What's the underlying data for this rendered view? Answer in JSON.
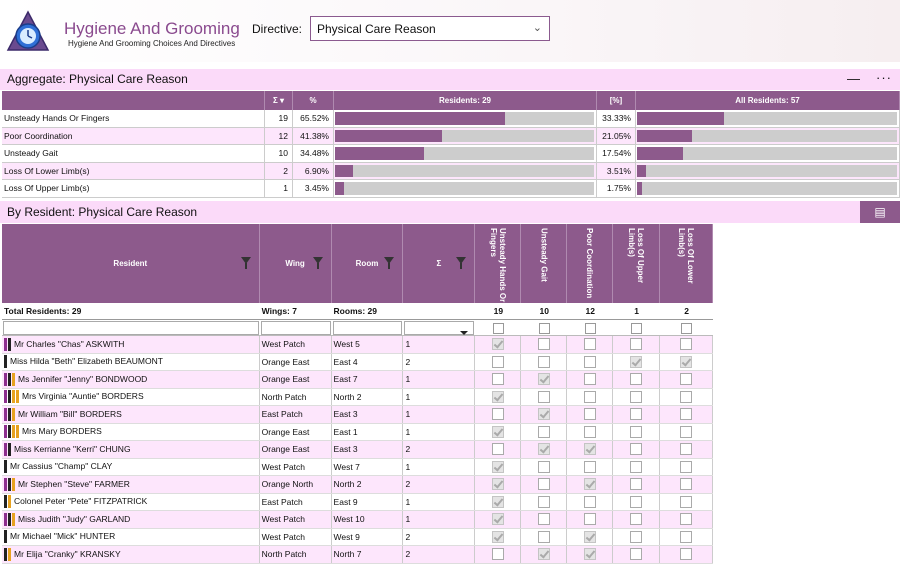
{
  "app": {
    "title": "Hygiene And Grooming",
    "subtitle": "Hygiene And Grooming Choices And Directives"
  },
  "directive": {
    "label": "Directive:",
    "value": "Physical Care Reason"
  },
  "aggregate": {
    "title": "Aggregate: Physical Care Reason",
    "minimize": "—",
    "more": "···",
    "headers": {
      "sigma": "Σ",
      "sort": "▾",
      "pct": "%",
      "residents": "Residents: 29",
      "pct2": "[%]",
      "all": "All Residents: 57"
    },
    "rows": [
      {
        "label": "Unsteady Hands Or Fingers",
        "n": "19",
        "pct": "65.52%",
        "frac": 0.6552,
        "pct2": "33.33%",
        "frac2": 0.3333
      },
      {
        "label": "Poor Coordination",
        "n": "12",
        "pct": "41.38%",
        "frac": 0.4138,
        "pct2": "21.05%",
        "frac2": 0.2105
      },
      {
        "label": "Unsteady Gait",
        "n": "10",
        "pct": "34.48%",
        "frac": 0.3448,
        "pct2": "17.54%",
        "frac2": 0.1754
      },
      {
        "label": "Loss Of Lower Limb(s)",
        "n": "2",
        "pct": "6.90%",
        "frac": 0.069,
        "pct2": "3.51%",
        "frac2": 0.0351
      },
      {
        "label": "Loss Of Upper Limb(s)",
        "n": "1",
        "pct": "3.45%",
        "frac": 0.0345,
        "pct2": "1.75%",
        "frac2": 0.0175
      }
    ]
  },
  "byResident": {
    "title": "By Resident: Physical Care Reason",
    "headers": {
      "resident": "Resident",
      "wing": "Wing",
      "room": "Room",
      "sigma": "Σ",
      "c1": "Unsteady Hands Or Fingers",
      "c2": "Unsteady Gait",
      "c3": "Poor Coordination",
      "c4": "Loss Of Upper Limb(s)",
      "c5": "Loss Of Lower Limb(s)"
    },
    "totals": {
      "residents": "Total Residents: 29",
      "wings": "Wings: 7",
      "rooms": "Rooms: 29",
      "c1": "19",
      "c2": "10",
      "c3": "12",
      "c4": "1",
      "c5": "2"
    },
    "rows": [
      {
        "name": "Mr Charles \"Chas\" ASKWITH",
        "wing": "West Patch",
        "room": "West  5",
        "n": "1",
        "tags": [
          "#8d2f8e",
          "#222"
        ],
        "checks": [
          1,
          0,
          0,
          0,
          0
        ]
      },
      {
        "name": "Miss Hilda \"Beth\" Elizabeth BEAUMONT",
        "wing": "Orange East",
        "room": "East  4",
        "n": "2",
        "tags": [
          "#222"
        ],
        "checks": [
          0,
          0,
          0,
          1,
          1
        ]
      },
      {
        "name": "Ms Jennifer \"Jenny\" BONDWOOD",
        "wing": "Orange East",
        "room": "East  7",
        "n": "1",
        "tags": [
          "#8d2f8e",
          "#222",
          "#e7a21f"
        ],
        "checks": [
          0,
          1,
          0,
          0,
          0
        ]
      },
      {
        "name": "Mrs Virginia \"Auntie\" BORDERS",
        "wing": "North Patch",
        "room": "North   2",
        "n": "1",
        "tags": [
          "#8d2f8e",
          "#222",
          "#e7a21f",
          "#e7a21f"
        ],
        "checks": [
          1,
          0,
          0,
          0,
          0
        ]
      },
      {
        "name": "Mr William \"Bill\" BORDERS",
        "wing": "East Patch",
        "room": "East  3",
        "n": "1",
        "tags": [
          "#8d2f8e",
          "#222",
          "#e7a21f"
        ],
        "checks": [
          0,
          1,
          0,
          0,
          0
        ]
      },
      {
        "name": "Mrs Mary BORDERS",
        "wing": "Orange East",
        "room": "East  1",
        "n": "1",
        "tags": [
          "#8d2f8e",
          "#222",
          "#e7a21f",
          "#e7a21f"
        ],
        "checks": [
          1,
          0,
          0,
          0,
          0
        ]
      },
      {
        "name": "Miss Kerrianne \"Kerri\" CHUNG",
        "wing": "Orange East",
        "room": "East  3",
        "n": "2",
        "tags": [
          "#8d2f8e",
          "#222"
        ],
        "checks": [
          0,
          1,
          1,
          0,
          0
        ]
      },
      {
        "name": "Mr  Cassius \"Champ\" CLAY",
        "wing": "West Patch",
        "room": "West  7",
        "n": "1",
        "tags": [
          "#222"
        ],
        "checks": [
          1,
          0,
          0,
          0,
          0
        ]
      },
      {
        "name": "Mr Stephen \"Steve\" FARMER",
        "wing": "Orange North",
        "room": "North  2",
        "n": "2",
        "tags": [
          "#8d2f8e",
          "#222",
          "#e7a21f"
        ],
        "checks": [
          1,
          0,
          1,
          0,
          0
        ]
      },
      {
        "name": "Colonel Peter \"Pete\" FITZPATRICK",
        "wing": "East Patch",
        "room": "East  9",
        "n": "1",
        "tags": [
          "#222",
          "#e7a21f"
        ],
        "checks": [
          1,
          0,
          0,
          0,
          0
        ]
      },
      {
        "name": "Miss Judith \"Judy\" GARLAND",
        "wing": "West Patch",
        "room": "West 10",
        "n": "1",
        "tags": [
          "#8d2f8e",
          "#222",
          "#e7a21f"
        ],
        "checks": [
          1,
          0,
          0,
          0,
          0
        ]
      },
      {
        "name": "Mr Michael \"Mick\" HUNTER",
        "wing": "West Patch",
        "room": "West  9",
        "n": "2",
        "tags": [
          "#222"
        ],
        "checks": [
          1,
          0,
          1,
          0,
          0
        ]
      },
      {
        "name": "Mr Elija \"Cranky\" KRANSKY",
        "wing": "North Patch",
        "room": "North   7",
        "n": "2",
        "tags": [
          "#222",
          "#e7a21f"
        ],
        "checks": [
          0,
          1,
          1,
          0,
          0
        ]
      }
    ]
  }
}
